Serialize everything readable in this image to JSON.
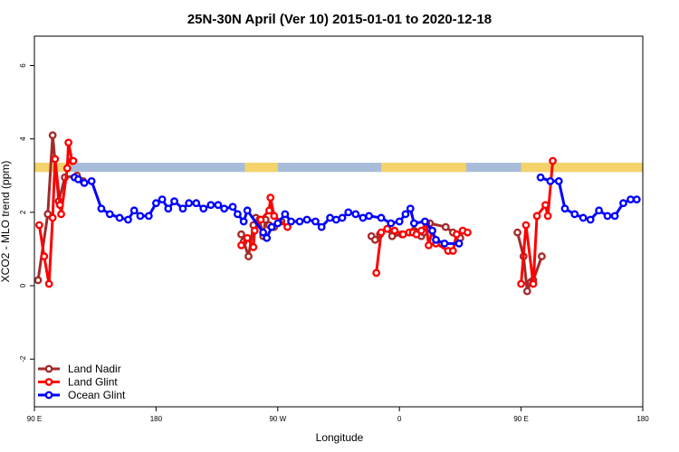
{
  "chart_data": {
    "type": "line",
    "title": "25N-30N April (Ver 10)   2015-01-01 to 2020-12-18",
    "xlabel": "Longitude",
    "ylabel": "XCO2 - MLO trend (ppm)",
    "xlim": [
      0,
      500
    ],
    "ylim": [
      -3.3,
      6.8
    ],
    "x_ticks": [
      {
        "value": 0,
        "label": "90 E"
      },
      {
        "value": 100,
        "label": "180"
      },
      {
        "value": 200,
        "label": "90 W"
      },
      {
        "value": 300,
        "label": "0"
      },
      {
        "value": 400,
        "label": "90 E"
      },
      {
        "value": 500,
        "label": "180"
      }
    ],
    "y_ticks": [
      -2,
      0,
      2,
      4,
      6
    ],
    "legend_position": "bottom-left",
    "land_band": {
      "y_range": [
        3.1,
        3.35
      ],
      "ocean_color": "#a7bcd9",
      "land_color": "#f4d36b",
      "land_segments": [
        [
          0,
          30
        ],
        [
          173,
          200
        ],
        [
          285,
          355
        ],
        [
          400,
          500
        ]
      ]
    },
    "series": [
      {
        "name": "Land Nadir",
        "color": "#a52a2a",
        "x": [
          3,
          11,
          15,
          20,
          25,
          35,
          40,
          170,
          172,
          176,
          180,
          182,
          185,
          188,
          190,
          193,
          197,
          203,
          277,
          280,
          284,
          290,
          294,
          302,
          312,
          314,
          318,
          320,
          325,
          338,
          344,
          350,
          397,
          402,
          405,
          408,
          410,
          417
        ],
        "y": [
          0.15,
          1.95,
          4.1,
          2.3,
          2.95,
          3.0,
          2.85,
          1.4,
          1.2,
          0.8,
          1.65,
          1.85,
          1.8,
          1.35,
          1.8,
          1.65,
          1.6,
          1.75,
          1.35,
          1.25,
          1.4,
          1.55,
          1.35,
          1.4,
          1.5,
          1.45,
          1.35,
          1.45,
          1.7,
          1.6,
          1.45,
          1.3,
          1.45,
          0.8,
          -0.15,
          0.1,
          0.15,
          0.8
        ]
      },
      {
        "name": "Land Glint",
        "color": "#ff0000",
        "x": [
          4,
          8,
          12,
          15,
          17,
          21,
          22,
          27,
          28,
          31,
          32,
          170,
          175,
          180,
          181,
          186,
          193,
          194,
          197,
          208,
          281,
          285,
          290,
          296,
          303,
          308,
          311,
          314,
          318,
          322,
          324,
          327,
          330,
          340,
          344,
          347,
          352,
          356,
          400,
          404,
          410,
          413,
          420,
          422,
          426
        ],
        "y": [
          1.65,
          0.8,
          0.05,
          1.85,
          3.45,
          2.2,
          1.95,
          3.2,
          3.9,
          3.4,
          3.4,
          1.1,
          1.3,
          1.05,
          1.5,
          1.8,
          2.05,
          2.4,
          1.9,
          1.6,
          0.35,
          1.45,
          1.55,
          1.5,
          1.4,
          1.45,
          1.45,
          1.4,
          1.5,
          1.7,
          1.1,
          1.5,
          1.15,
          0.95,
          0.95,
          1.4,
          1.5,
          1.45,
          0.05,
          1.65,
          0.05,
          1.9,
          2.2,
          1.9,
          3.4
        ]
      },
      {
        "name": "Ocean Glint",
        "color": "#0000ff",
        "x": [
          33,
          36,
          41,
          47,
          55,
          62,
          70,
          77,
          82,
          87,
          94,
          100,
          105,
          110,
          115,
          122,
          127,
          133,
          139,
          145,
          151,
          156,
          163,
          167,
          172,
          175,
          188,
          191,
          195,
          200,
          206,
          211,
          218,
          224,
          231,
          236,
          243,
          248,
          253,
          258,
          264,
          270,
          275,
          285,
          293,
          300,
          305,
          309,
          312,
          321,
          327,
          330,
          337,
          349,
          416,
          424,
          431,
          436,
          444,
          451,
          457,
          464,
          471,
          477,
          484,
          490,
          495
        ],
        "y": [
          2.95,
          2.9,
          2.8,
          2.85,
          2.1,
          1.95,
          1.85,
          1.8,
          2.05,
          1.9,
          1.9,
          2.25,
          2.35,
          2.1,
          2.3,
          2.1,
          2.25,
          2.25,
          2.1,
          2.2,
          2.2,
          2.1,
          2.15,
          1.95,
          1.75,
          2.05,
          1.45,
          1.3,
          1.6,
          1.7,
          1.95,
          1.75,
          1.75,
          1.8,
          1.75,
          1.6,
          1.85,
          1.8,
          1.85,
          2.0,
          1.95,
          1.85,
          1.9,
          1.85,
          1.7,
          1.75,
          1.95,
          2.1,
          1.7,
          1.75,
          1.5,
          1.25,
          1.15,
          1.15,
          2.95,
          2.85,
          2.85,
          2.1,
          1.95,
          1.85,
          1.8,
          2.05,
          1.9,
          1.9,
          2.25,
          2.35,
          2.35
        ]
      }
    ]
  }
}
